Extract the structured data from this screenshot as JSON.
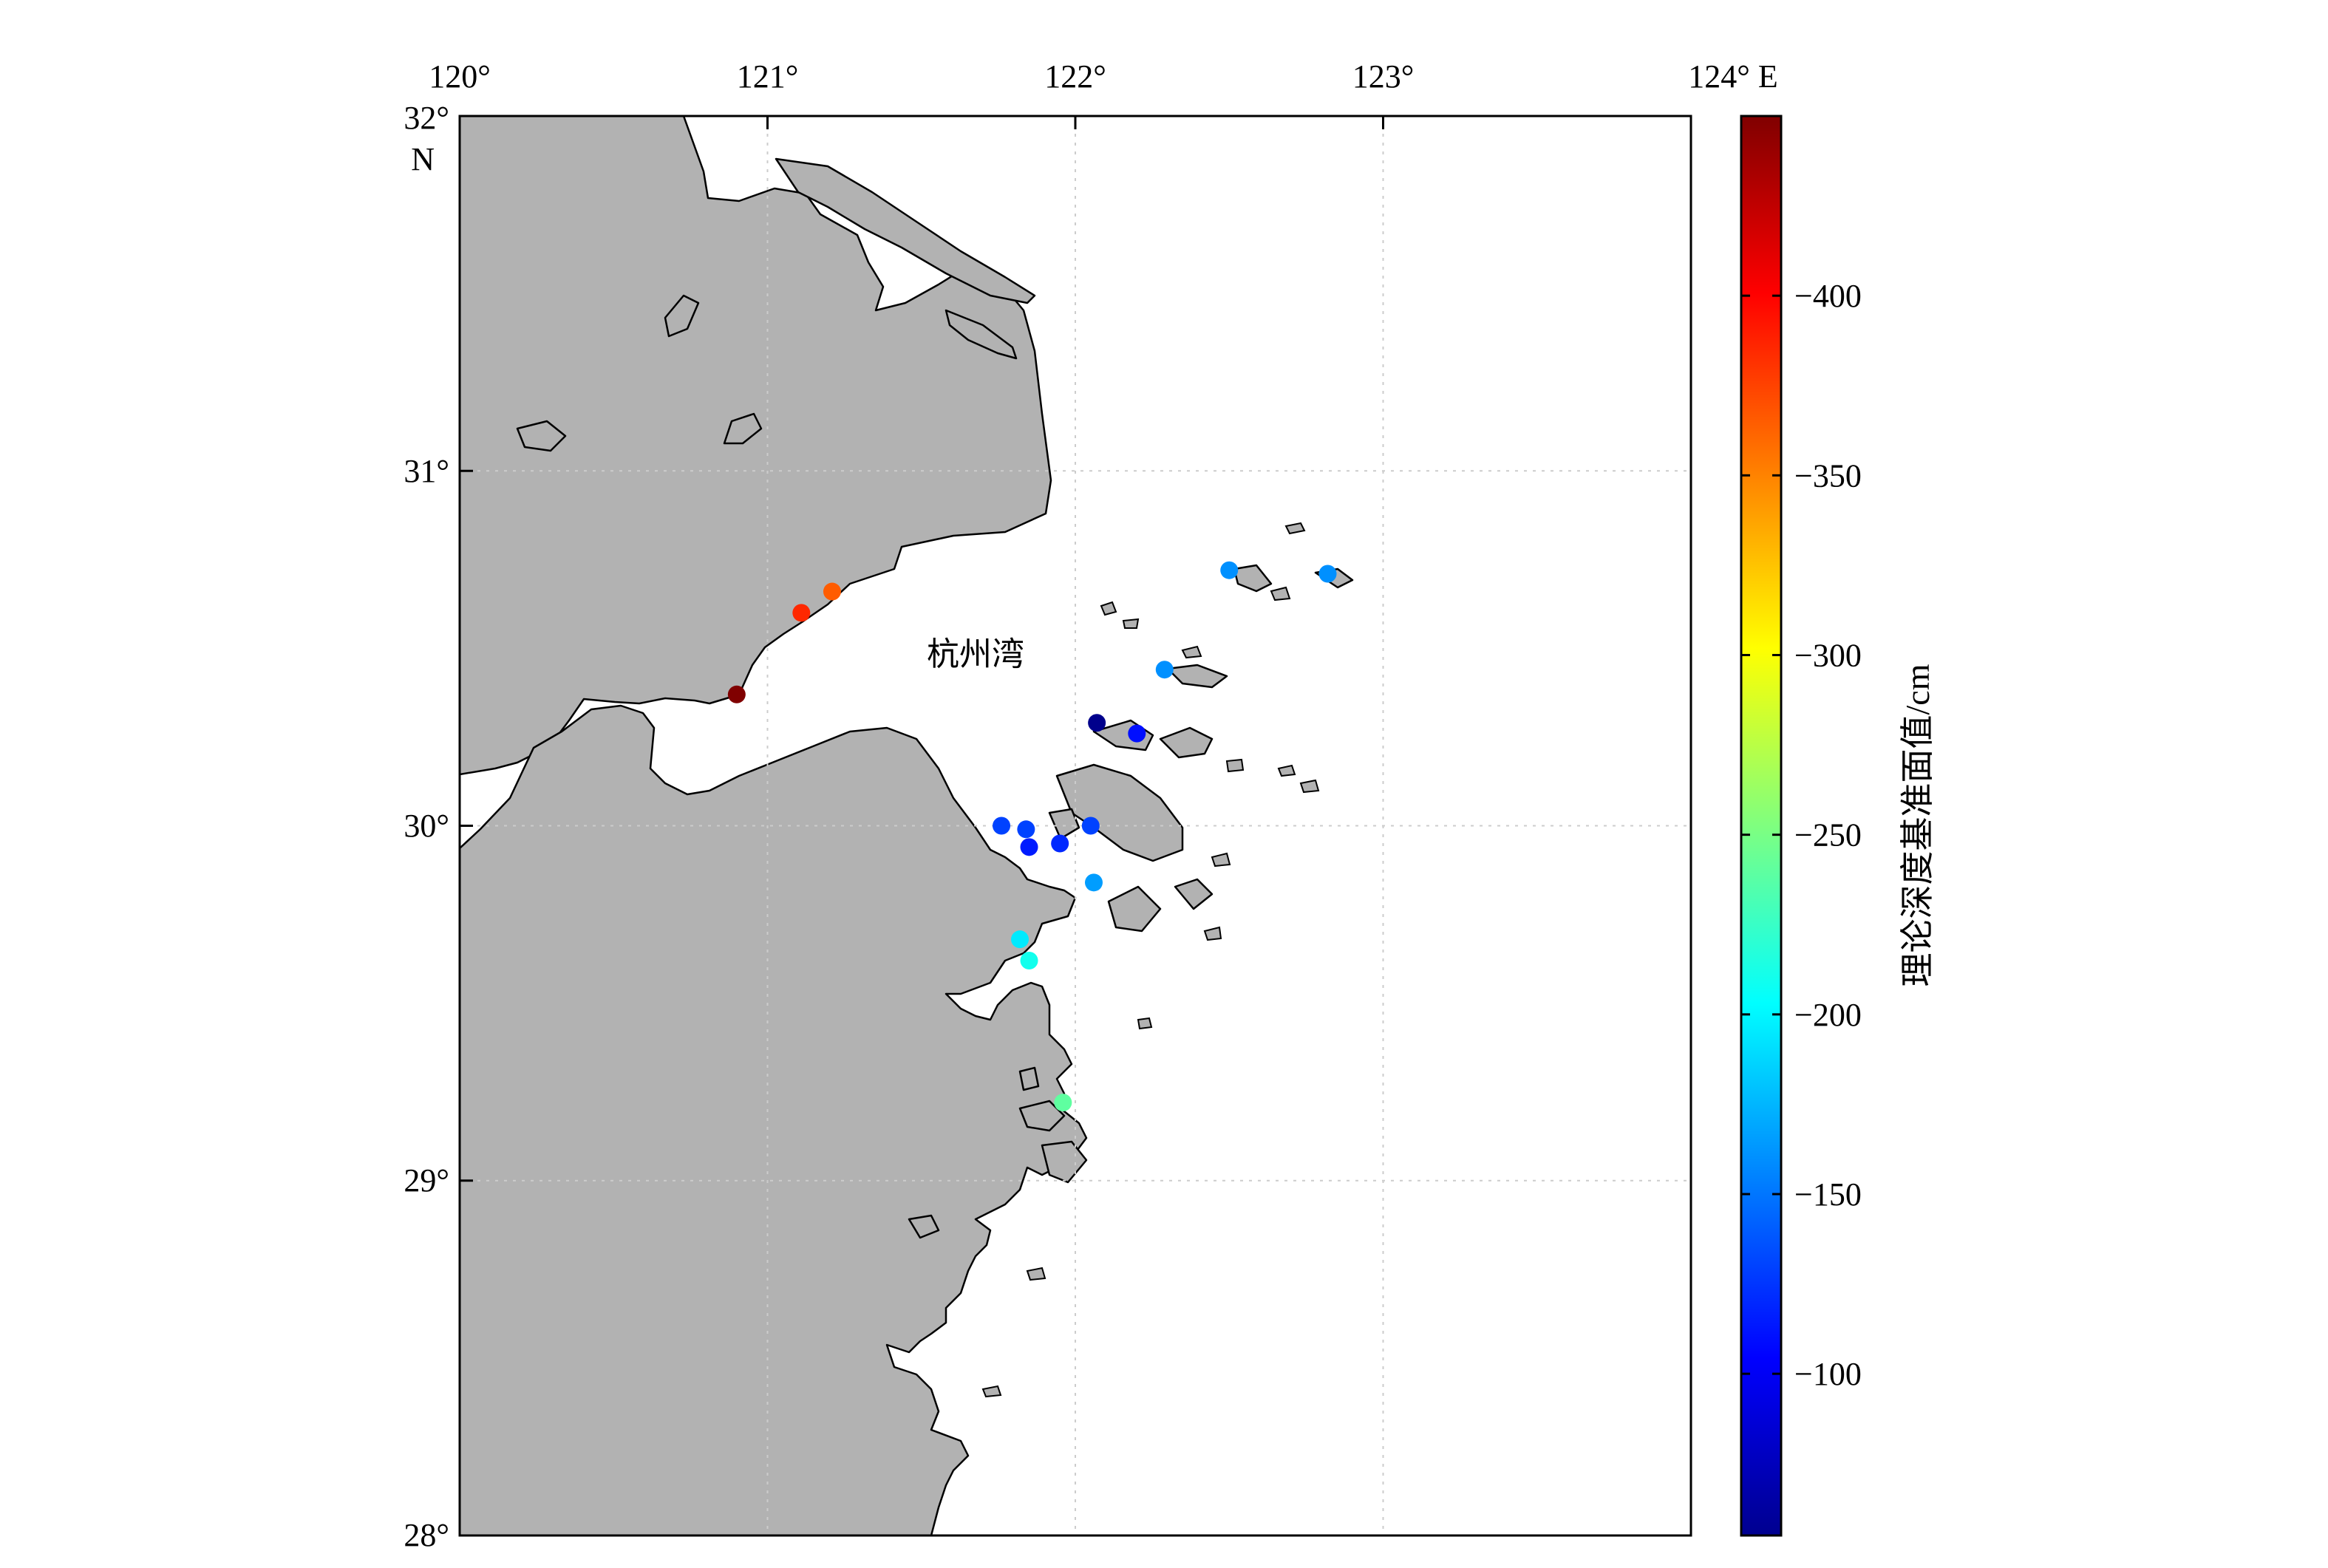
{
  "map": {
    "lon_ticks": [
      "120°",
      "121°",
      "122°",
      "123°",
      "124° E"
    ],
    "lat_ticks": [
      "32°",
      "31°",
      "30°",
      "29°",
      "28°"
    ],
    "lat_hemisphere": "N",
    "bay_label": "杭州湾",
    "lon_range": [
      120,
      124
    ],
    "lat_range": [
      28,
      32
    ],
    "grid": true,
    "land_color": "#b2b2b2",
    "sea_color": "#ffffff"
  },
  "colorbar": {
    "title": "理论深度基准面值/cm",
    "ticks": [
      "−400",
      "−350",
      "−300",
      "−250",
      "−200",
      "−150",
      "−100"
    ],
    "tick_values": [
      -400,
      -350,
      -300,
      -250,
      -200,
      -150,
      -100
    ],
    "range": [
      -450,
      -55
    ],
    "colormap": "jet"
  },
  "chart_data": {
    "type": "scatter",
    "xlabel": "",
    "ylabel": "",
    "xlim": [
      120,
      124
    ],
    "ylim": [
      28,
      32
    ],
    "points": [
      {
        "lon": 120.9,
        "lat": 30.37,
        "value": -450
      },
      {
        "lon": 121.11,
        "lat": 30.6,
        "value": -385
      },
      {
        "lon": 121.21,
        "lat": 30.66,
        "value": -365
      },
      {
        "lon": 122.07,
        "lat": 30.29,
        "value": -60
      },
      {
        "lon": 122.2,
        "lat": 30.26,
        "value": -110
      },
      {
        "lon": 122.29,
        "lat": 30.44,
        "value": -160
      },
      {
        "lon": 122.5,
        "lat": 30.72,
        "value": -160
      },
      {
        "lon": 122.82,
        "lat": 30.71,
        "value": -160
      },
      {
        "lon": 121.76,
        "lat": 30.0,
        "value": -130
      },
      {
        "lon": 121.84,
        "lat": 29.99,
        "value": -130
      },
      {
        "lon": 121.85,
        "lat": 29.94,
        "value": -115
      },
      {
        "lon": 121.95,
        "lat": 29.95,
        "value": -120
      },
      {
        "lon": 122.05,
        "lat": 30.0,
        "value": -130
      },
      {
        "lon": 122.06,
        "lat": 29.84,
        "value": -165
      },
      {
        "lon": 121.82,
        "lat": 29.68,
        "value": -195
      },
      {
        "lon": 121.85,
        "lat": 29.62,
        "value": -210
      },
      {
        "lon": 121.96,
        "lat": 29.22,
        "value": -240
      }
    ]
  }
}
